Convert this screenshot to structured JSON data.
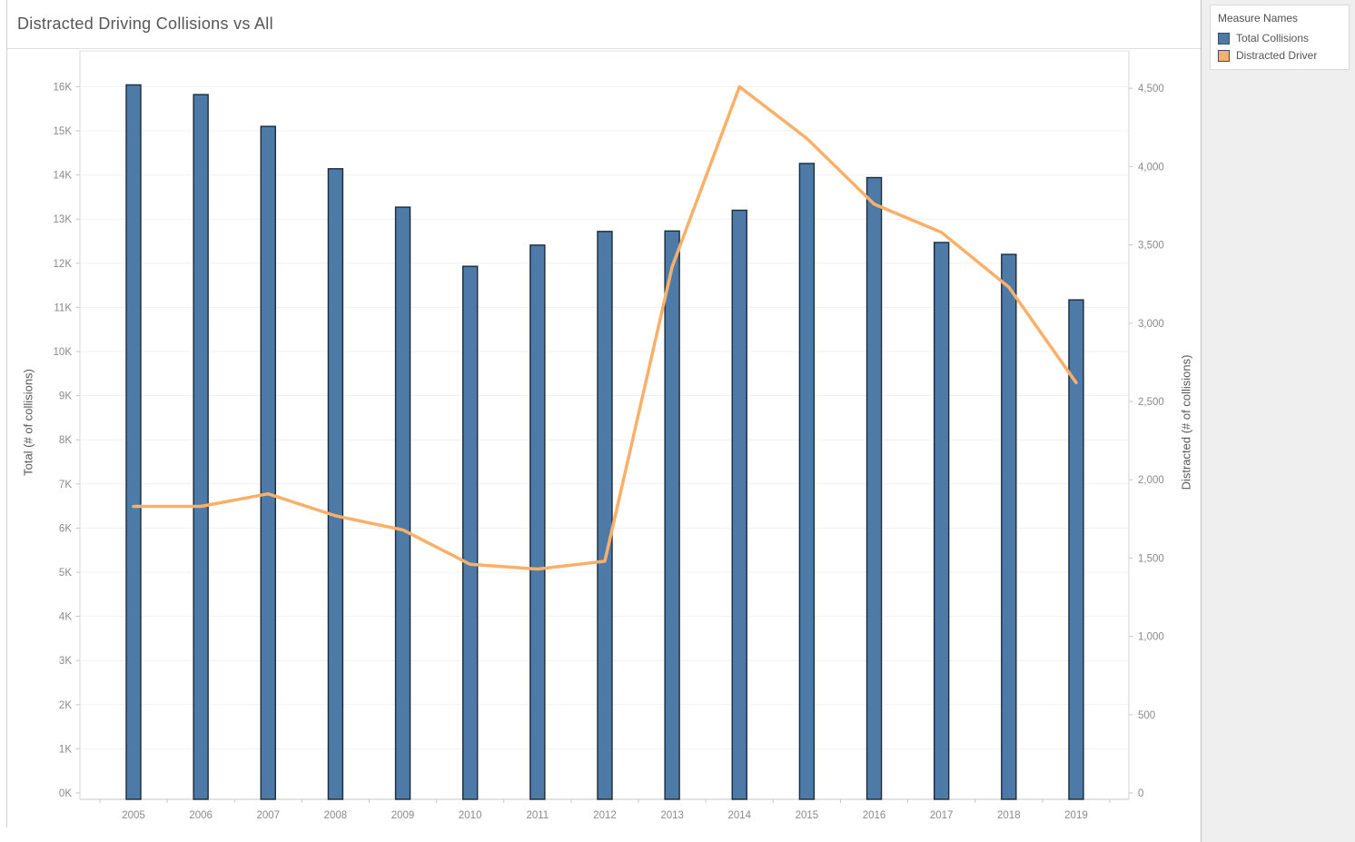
{
  "title": "Distracted Driving Collisions vs All",
  "legend": {
    "title": "Measure Names",
    "items": [
      {
        "label": "Total Collisions",
        "color": "#4e7aa8",
        "border": "#3b4c66"
      },
      {
        "label": "Distracted Driver",
        "color": "#fab069",
        "border": "#3b4c66"
      }
    ]
  },
  "chart_data": {
    "type": "bar",
    "subtype": "dual-axis bar + line",
    "title": "Distracted Driving Collisions vs All",
    "categories": [
      "2005",
      "2006",
      "2007",
      "2008",
      "2009",
      "2010",
      "2011",
      "2012",
      "2013",
      "2014",
      "2015",
      "2016",
      "2017",
      "2018",
      "2019"
    ],
    "series": [
      {
        "name": "Total Collisions",
        "type": "bar",
        "axis": "left",
        "color": "#4e7aa8",
        "values": [
          16040,
          15820,
          15100,
          14140,
          13270,
          11930,
          12410,
          12720,
          12730,
          13200,
          14260,
          13940,
          12470,
          12200,
          11170
        ]
      },
      {
        "name": "Distracted Driver",
        "type": "line",
        "axis": "right",
        "color": "#fab069",
        "values": [
          1830,
          1830,
          1910,
          1770,
          1680,
          1460,
          1430,
          1480,
          3360,
          4510,
          4180,
          3760,
          3580,
          3230,
          2620
        ]
      }
    ],
    "left_axis": {
      "title": "Total (# of collisions)",
      "range": [
        0,
        16000
      ],
      "ticks": [
        "0K",
        "1K",
        "2K",
        "3K",
        "4K",
        "5K",
        "6K",
        "7K",
        "8K",
        "9K",
        "10K",
        "11K",
        "12K",
        "13K",
        "14K",
        "15K",
        "16K"
      ]
    },
    "right_axis": {
      "title": "Distracted (# of collisions)",
      "range": [
        0,
        4500
      ],
      "ticks": [
        "0",
        "500",
        "1,000",
        "1,500",
        "2,000",
        "2,500",
        "3,000",
        "3,500",
        "4,000",
        "4,500"
      ]
    },
    "grid": true,
    "legend_position": "top-right"
  }
}
